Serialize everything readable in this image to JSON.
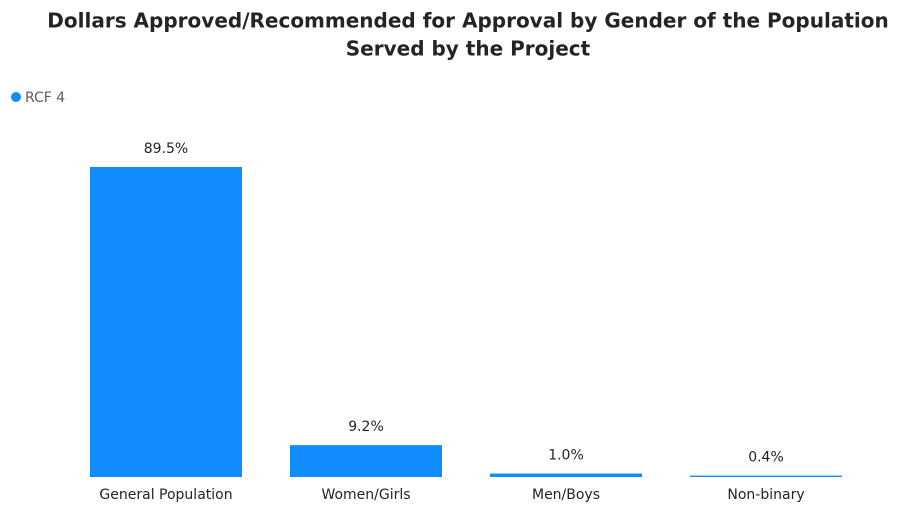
{
  "chart_data": {
    "type": "bar",
    "title": [
      "Dollars Approved/Recommended for Approval by Gender of the Population",
      "Served by the Project"
    ],
    "categories": [
      "General Population",
      "Women/Girls",
      "Men/Boys",
      "Non-binary"
    ],
    "series": [
      {
        "name": "RCF 4",
        "color": "#118DFF",
        "values": [
          89.5,
          9.2,
          1.0,
          0.4
        ],
        "value_labels": [
          "89.5%",
          "9.2%",
          "1.0%",
          "0.4%"
        ]
      }
    ],
    "legend": "top-left"
  }
}
